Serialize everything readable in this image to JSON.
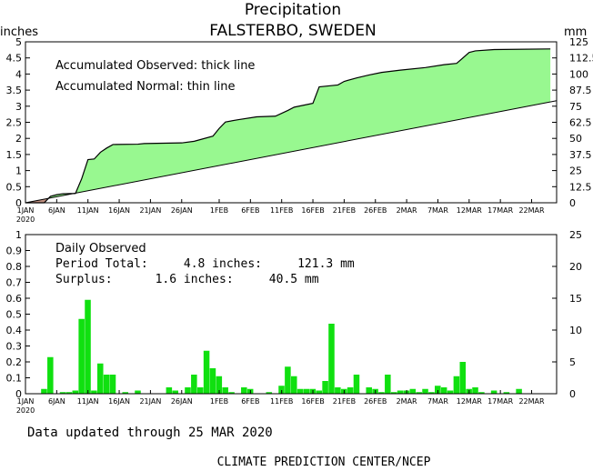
{
  "title": "Precipitation",
  "subtitle": "FALSTERBO, SWEDEN",
  "footer_updated": "Data updated through 25 MAR 2020",
  "footer_credit": "CLIMATE PREDICTION CENTER/NCEP",
  "colors": {
    "surplus_fill": "#98f890",
    "deficit_fill": "#c09080",
    "daily_bar": "#10e010",
    "line": "#000000",
    "background": "#ffffff"
  },
  "chart_data": [
    {
      "type": "area",
      "title": "",
      "y_left_label": "inches",
      "y_right_label": "mm",
      "ylim_left": [
        0,
        5
      ],
      "ylim_right": [
        0,
        125
      ],
      "yticks_left": [
        "0",
        "0.5",
        "1",
        "1.5",
        "2",
        "2.5",
        "3",
        "3.5",
        "4",
        "4.5",
        "5"
      ],
      "yticks_right": [
        "0",
        "12.5",
        "25",
        "37.5",
        "50",
        "62.5",
        "75",
        "87.5",
        "100",
        "112.5",
        "125"
      ],
      "x_tick_labels": [
        "1JAN",
        "6JAN",
        "11JAN",
        "16JAN",
        "21JAN",
        "26JAN",
        "1FEB",
        "6FEB",
        "11FEB",
        "16FEB",
        "21FEB",
        "26FEB",
        "2MAR",
        "7MAR",
        "12MAR",
        "17MAR",
        "22MAR"
      ],
      "x_year_label": "2020",
      "x_unit": "day of year 2020 (1 = 1 JAN)",
      "x_range": [
        1,
        86
      ],
      "legend_lines": [
        "Accumulated Observed: thick line",
        "Accumulated Normal: thin line"
      ],
      "series": [
        {
          "name": "Accumulated Observed",
          "points": [
            [
              1,
              0.0
            ],
            [
              4,
              0.0
            ],
            [
              5,
              0.2
            ],
            [
              6,
              0.25
            ],
            [
              7,
              0.28
            ],
            [
              9,
              0.29
            ],
            [
              10,
              0.75
            ],
            [
              11,
              1.34
            ],
            [
              12,
              1.36
            ],
            [
              13,
              1.57
            ],
            [
              14,
              1.7
            ],
            [
              15,
              1.81
            ],
            [
              19,
              1.82
            ],
            [
              20,
              1.84
            ],
            [
              26,
              1.86
            ],
            [
              28,
              1.91
            ],
            [
              31,
              2.07
            ],
            [
              32,
              2.31
            ],
            [
              33,
              2.51
            ],
            [
              35,
              2.58
            ],
            [
              38,
              2.67
            ],
            [
              41,
              2.69
            ],
            [
              43,
              2.87
            ],
            [
              44,
              2.97
            ],
            [
              47,
              3.09
            ],
            [
              48,
              3.6
            ],
            [
              51,
              3.66
            ],
            [
              52,
              3.77
            ],
            [
              54,
              3.88
            ],
            [
              56,
              3.97
            ],
            [
              58,
              4.05
            ],
            [
              61,
              4.12
            ],
            [
              65,
              4.2
            ],
            [
              68,
              4.29
            ],
            [
              70,
              4.33
            ],
            [
              72,
              4.67
            ],
            [
              73,
              4.72
            ],
            [
              76,
              4.76
            ],
            [
              85,
              4.78
            ]
          ]
        },
        {
          "name": "Accumulated Normal",
          "points": [
            [
              1,
              0.0
            ],
            [
              86,
              3.17
            ]
          ]
        }
      ]
    },
    {
      "type": "bar",
      "title": "",
      "ylim_left": [
        0,
        1
      ],
      "ylim_right": [
        0,
        25
      ],
      "yticks_left": [
        "0",
        "0.1",
        "0.2",
        "0.3",
        "0.4",
        "0.5",
        "0.6",
        "0.7",
        "0.8",
        "0.9",
        "1"
      ],
      "yticks_right": [
        "0",
        "5",
        "10",
        "15",
        "20",
        "25"
      ],
      "x_tick_labels": [
        "1JAN",
        "6JAN",
        "11JAN",
        "16JAN",
        "21JAN",
        "26JAN",
        "1FEB",
        "6FEB",
        "11FEB",
        "16FEB",
        "21FEB",
        "26FEB",
        "2MAR",
        "7MAR",
        "12MAR",
        "17MAR",
        "22MAR"
      ],
      "x_year_label": "2020",
      "x_unit": "day of year 2020 (1 = 1 JAN)",
      "annotation_title": "Daily Observed",
      "annotation_total": "Period Total:     4.8 inches:     121.3 mm",
      "annotation_surplus": "Surplus:      1.6 inches:     40.5 mm",
      "series": [
        {
          "name": "Daily Observed",
          "days": [
            4,
            5,
            7,
            8,
            9,
            10,
            11,
            12,
            13,
            14,
            15,
            17,
            19,
            24,
            25,
            27,
            28,
            29,
            30,
            31,
            32,
            33,
            34,
            36,
            37,
            40,
            42,
            43,
            44,
            45,
            46,
            47,
            48,
            49,
            50,
            51,
            52,
            53,
            54,
            56,
            57,
            58,
            59,
            60,
            61,
            62,
            63,
            64,
            65,
            66,
            67,
            68,
            69,
            70,
            71,
            72,
            73,
            74,
            76,
            78,
            80
          ],
          "values": [
            0.03,
            0.23,
            0.01,
            0.01,
            0.02,
            0.47,
            0.59,
            0.02,
            0.19,
            0.12,
            0.12,
            0.01,
            0.02,
            0.04,
            0.02,
            0.04,
            0.12,
            0.04,
            0.27,
            0.16,
            0.11,
            0.04,
            0.01,
            0.04,
            0.03,
            0.01,
            0.05,
            0.17,
            0.11,
            0.03,
            0.03,
            0.03,
            0.02,
            0.08,
            0.44,
            0.04,
            0.03,
            0.04,
            0.12,
            0.04,
            0.03,
            0.01,
            0.12,
            0.01,
            0.02,
            0.02,
            0.03,
            0.01,
            0.03,
            0.01,
            0.05,
            0.04,
            0.02,
            0.11,
            0.2,
            0.03,
            0.04,
            0.01,
            0.02,
            0.01,
            0.03
          ]
        }
      ]
    }
  ]
}
